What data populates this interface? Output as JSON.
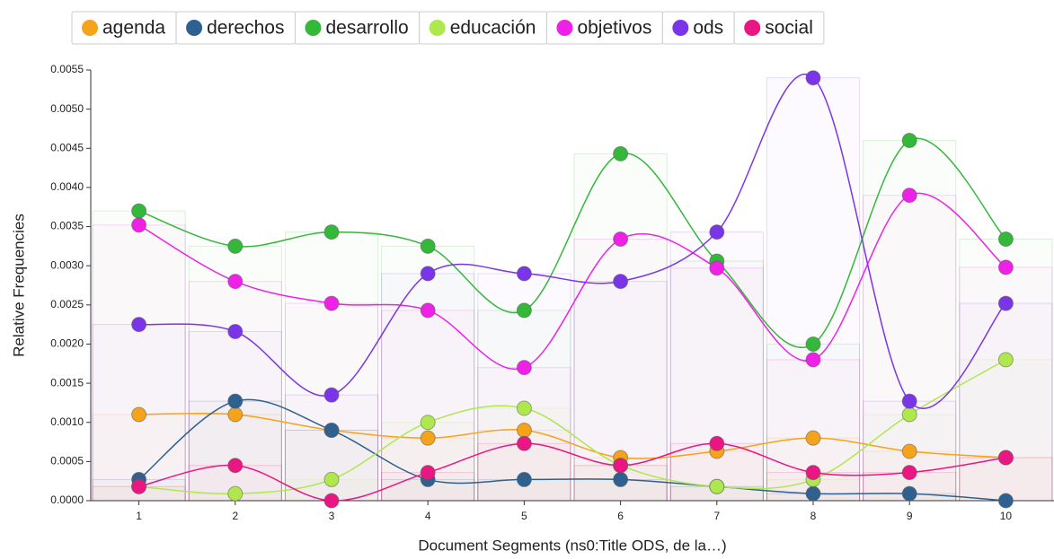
{
  "chart_data": {
    "type": "line",
    "x_label": "Document Segments (ns0:Title ODS, de la…)",
    "y_label": "Relative Frequencies",
    "categories": [
      "1",
      "2",
      "3",
      "4",
      "5",
      "6",
      "7",
      "8",
      "9",
      "10"
    ],
    "series": [
      {
        "name": "agenda",
        "color": "#f5a31a",
        "values": [
          0.0011,
          0.0011,
          0.0009,
          0.0008,
          0.0009,
          0.00055,
          0.00063,
          0.0008,
          0.00063,
          0.00055
        ]
      },
      {
        "name": "derechos",
        "color": "#2f6190",
        "values": [
          0.00027,
          0.00127,
          0.0009,
          0.00027,
          0.00027,
          0.00027,
          0.00018,
          9e-05,
          9e-05,
          0
        ]
      },
      {
        "name": "desarrollo",
        "color": "#33b83a",
        "values": [
          0.0037,
          0.00325,
          0.00343,
          0.00325,
          0.00243,
          0.00443,
          0.00306,
          0.002,
          0.0046,
          0.00334
        ]
      },
      {
        "name": "educación",
        "color": "#aee84c",
        "values": [
          0.00018,
          9e-05,
          0.00027,
          0.001,
          0.00118,
          0.00045,
          0.00018,
          0.00027,
          0.0011,
          0.0018
        ]
      },
      {
        "name": "objetivos",
        "color": "#ee22e6",
        "values": [
          0.00352,
          0.0028,
          0.00252,
          0.00243,
          0.0017,
          0.00334,
          0.00297,
          0.0018,
          0.0039,
          0.00298
        ]
      },
      {
        "name": "ods",
        "color": "#7b35e8",
        "values": [
          0.00225,
          0.00216,
          0.00135,
          0.0029,
          0.0029,
          0.0028,
          0.00343,
          0.0054,
          0.00127,
          0.00252
        ]
      },
      {
        "name": "social",
        "color": "#ea1683",
        "values": [
          0.00018,
          0.00045,
          0,
          0.00036,
          0.00073,
          0.00045,
          0.00073,
          0.00036,
          0.00036,
          0.00055
        ]
      }
    ],
    "ylim": [
      0,
      0.0055
    ],
    "yticks": [
      {
        "value": 0,
        "label": "0.0000"
      },
      {
        "value": 0.0005,
        "label": "0.0005"
      },
      {
        "value": 0.001,
        "label": "0.0010"
      },
      {
        "value": 0.0015,
        "label": "0.0015"
      },
      {
        "value": 0.002,
        "label": "0.0020"
      },
      {
        "value": 0.0025,
        "label": "0.0025"
      },
      {
        "value": 0.003,
        "label": "0.0030"
      },
      {
        "value": 0.0035,
        "label": "0.0035"
      },
      {
        "value": 0.004,
        "label": "0.0040"
      },
      {
        "value": 0.0045,
        "label": "0.0045"
      },
      {
        "value": 0.005,
        "label": "0.0050"
      },
      {
        "value": 0.0055,
        "label": "0.0055"
      }
    ],
    "legend": "top"
  }
}
